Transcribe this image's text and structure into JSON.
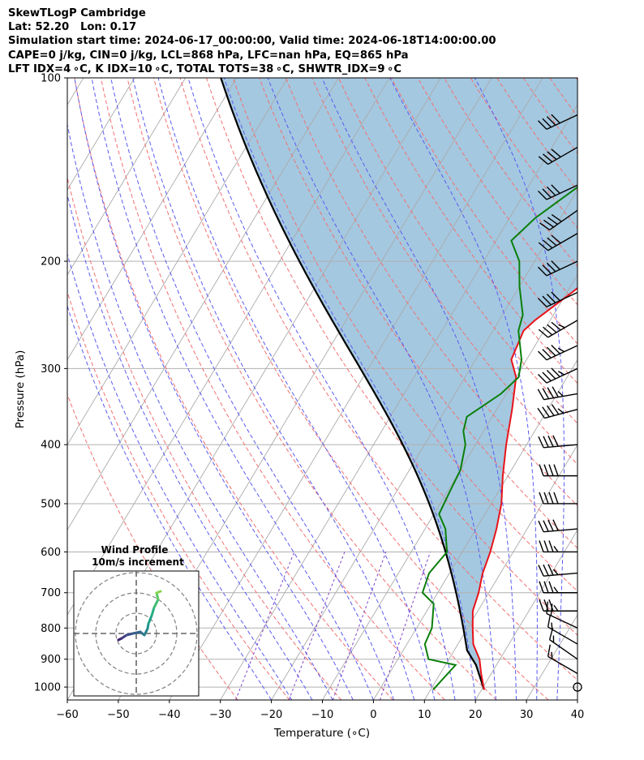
{
  "header": {
    "line1": "SkewTLogP Cambridge",
    "line2": "Lat: 52.20   Lon: 0.17",
    "line3": "Simulation start time: 2024-06-17_00:00:00, Valid time: 2024-06-18T14:00:00.00",
    "line4": "CAPE=0 j/kg, CIN=0 j/kg, LCL=868 hPa, LFC=nan hPa, EQ=865 hPa",
    "line5": "LFT IDX=4 ∘C, K IDX=10 ∘C, TOTAL TOTS=38 ∘C, SHWTR_IDX=9 ∘C"
  },
  "chart_data": {
    "type": "line",
    "subtype": "skew-T log-P diagram",
    "xlabel": "Temperature (∘C)",
    "ylabel": "Pressure (hPa)",
    "xlim": [
      -60,
      40
    ],
    "ylim": [
      1050,
      100
    ],
    "yscale": "log",
    "x_ticks": [
      "−60",
      "−50",
      "−40",
      "−30",
      "−20",
      "−10",
      "0",
      "10",
      "20",
      "30",
      "40"
    ],
    "y_ticks": [
      "100",
      "200",
      "300",
      "400",
      "500",
      "600",
      "700",
      "800",
      "900",
      "1000"
    ],
    "grid": true,
    "colors": {
      "temperature": "#e8131a",
      "dewpoint": "#0a7f0a",
      "parcel": "#000000",
      "shading": "#a4c8e0",
      "dry_adiabat": "#f27070",
      "moist_adiabat": "#5a5af2",
      "mixing_ratio": "#8040c8",
      "isotherm": "#aaaaaa"
    },
    "series": [
      {
        "kind": "temperature",
        "points": [
          [
            20.5,
            1010
          ],
          [
            18,
            950
          ],
          [
            16,
            900
          ],
          [
            13,
            850
          ],
          [
            11,
            800
          ],
          [
            9,
            750
          ],
          [
            8,
            700
          ],
          [
            6.5,
            650
          ],
          [
            5.5,
            600
          ],
          [
            4,
            550
          ],
          [
            2,
            500
          ],
          [
            -1,
            450
          ],
          [
            -4,
            400
          ],
          [
            -7,
            350
          ],
          [
            -10,
            310
          ],
          [
            -13,
            290
          ],
          [
            -14,
            260
          ],
          [
            -13,
            250
          ],
          [
            -9,
            225
          ],
          [
            -5,
            200
          ],
          [
            -1,
            175
          ],
          [
            3,
            160
          ],
          [
            5,
            150
          ],
          [
            6,
            140
          ],
          [
            7.5,
            125
          ],
          [
            9,
            112
          ],
          [
            12,
            100
          ]
        ]
      },
      {
        "kind": "dewpoint",
        "points": [
          [
            10.5,
            1010
          ],
          [
            12,
            920
          ],
          [
            6,
            900
          ],
          [
            3.5,
            850
          ],
          [
            3,
            800
          ],
          [
            0.5,
            730
          ],
          [
            -3,
            700
          ],
          [
            -4,
            650
          ],
          [
            -3,
            600
          ],
          [
            -6,
            550
          ],
          [
            -9,
            520
          ],
          [
            -9.5,
            480
          ],
          [
            -10,
            440
          ],
          [
            -12,
            400
          ],
          [
            -14,
            380
          ],
          [
            -15,
            360
          ],
          [
            -11,
            330
          ],
          [
            -9.5,
            310
          ],
          [
            -11,
            290
          ],
          [
            -15,
            260
          ],
          [
            -16,
            245
          ],
          [
            -20,
            220
          ],
          [
            -23,
            200
          ],
          [
            -27,
            185
          ],
          [
            -25,
            170
          ],
          [
            -20,
            150
          ],
          [
            -14,
            130
          ],
          [
            -10,
            115
          ],
          [
            -7,
            100
          ]
        ]
      },
      {
        "kind": "parcel",
        "points": [
          [
            20.5,
            1010
          ],
          [
            16,
            920
          ],
          [
            12.5,
            870
          ]
        ]
      }
    ],
    "wind_barbs": {
      "min_kt": 10,
      "max_kt": 45
    },
    "wind_profile_inset": {
      "title": "Wind Profile",
      "subtitle": "10m/s increment"
    }
  }
}
